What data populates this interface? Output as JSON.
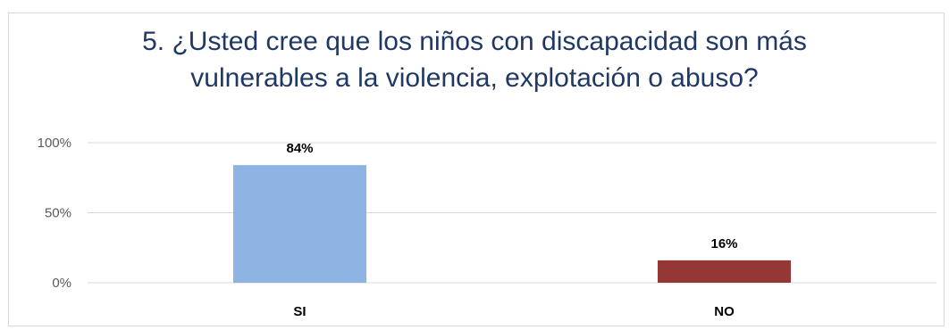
{
  "chart_data": {
    "type": "bar",
    "title_lines": [
      "5. ¿Usted cree que los niños con discapacidad son más",
      "vulnerables a la violencia, explotación o abuso?"
    ],
    "categories": [
      "SI",
      "NO"
    ],
    "values": [
      0.84,
      0.16
    ],
    "data_labels": [
      "84%",
      "16%"
    ],
    "bar_colors": [
      "#8eb4e3",
      "#953735"
    ],
    "yticks": [
      "0%",
      "50%",
      "100%"
    ],
    "ytick_values": [
      0,
      0.5,
      1.0
    ],
    "ylim": [
      0,
      1.0
    ],
    "grid": true,
    "legend": "none"
  }
}
